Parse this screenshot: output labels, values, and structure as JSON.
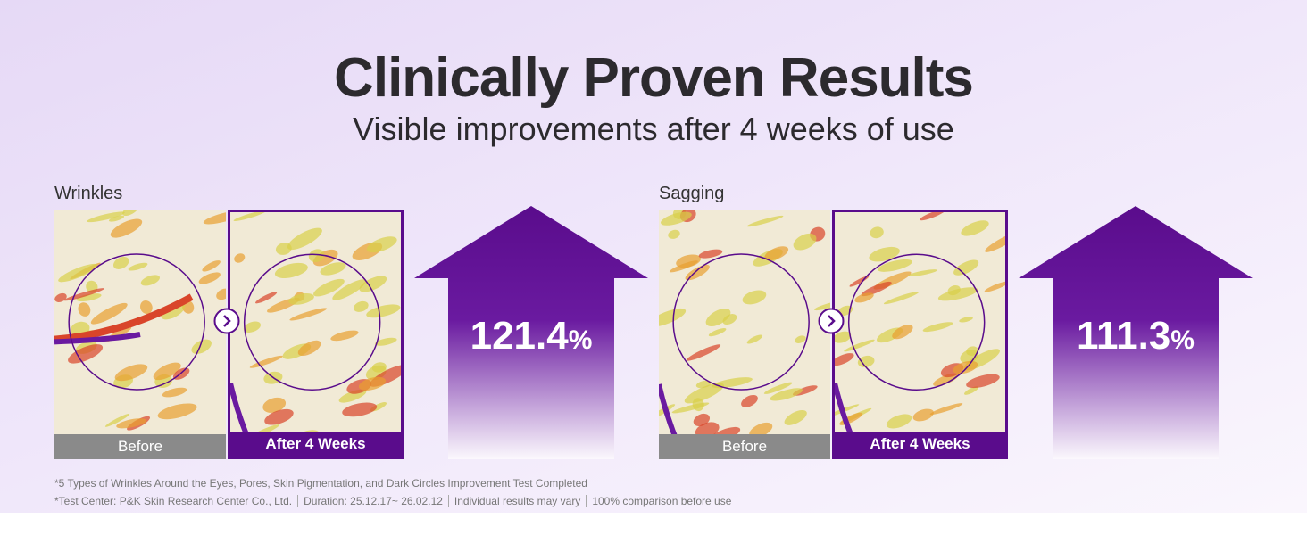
{
  "header": {
    "title": "Clinically Proven Results",
    "subtitle": "Visible improvements after 4 weeks of use"
  },
  "panels": [
    {
      "label": "Wrinkles",
      "before_label": "Before",
      "after_label": "After 4 Weeks",
      "value": "121.4",
      "unit": "%"
    },
    {
      "label": "Sagging",
      "before_label": "Before",
      "after_label": "After 4 Weeks",
      "value": "111.3",
      "unit": "%"
    }
  ],
  "footnotes": {
    "line1": "*5 Types of Wrinkles Around the Eyes, Pores, Skin Pigmentation, and Dark Circles Improvement Test Completed",
    "line2": [
      "*Test Center: P&K Skin Research Center Co., Ltd.",
      "Duration: 25.12.17~ 26.02.12",
      "Individual results may vary",
      "100% comparison before use"
    ]
  }
}
